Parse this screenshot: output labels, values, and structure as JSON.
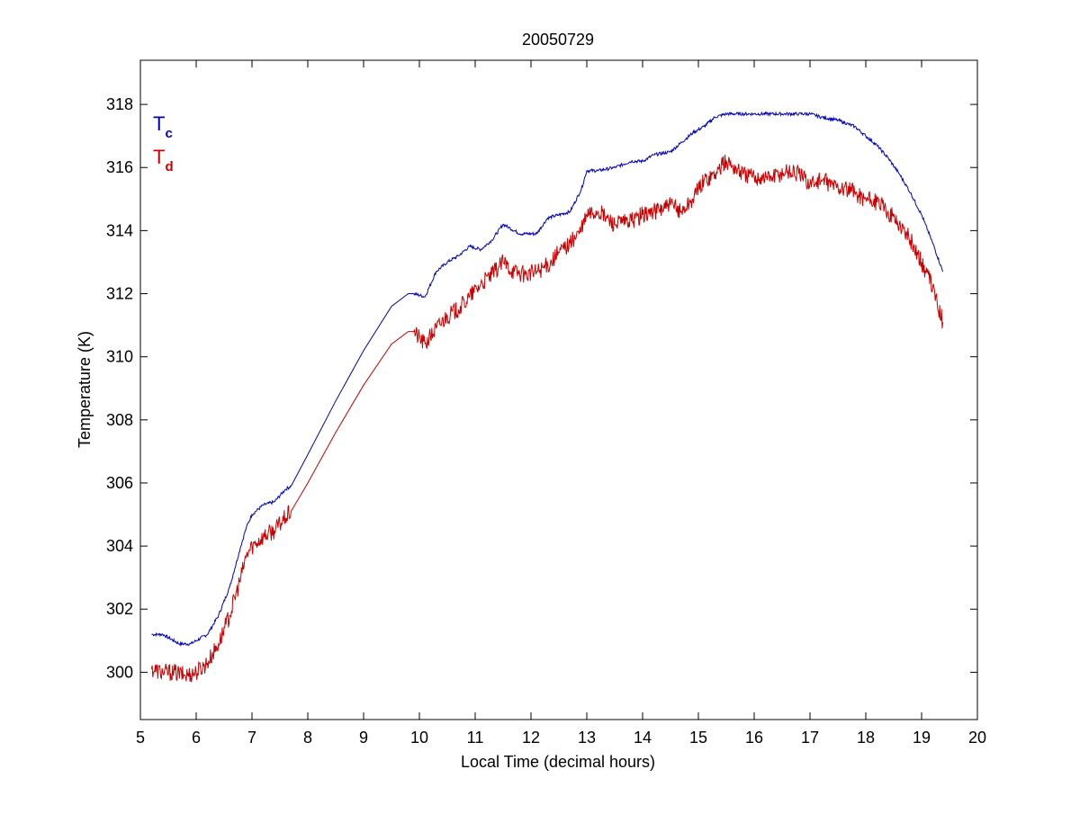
{
  "chart_data": {
    "type": "line",
    "title": "20050729",
    "xlabel": "Local Time (decimal hours)",
    "ylabel": "Temperature (K)",
    "xlim": [
      5,
      20
    ],
    "ylim": [
      298.5,
      319.4
    ],
    "xticks": [
      5,
      6,
      7,
      8,
      9,
      10,
      11,
      12,
      13,
      14,
      15,
      16,
      17,
      18,
      19,
      20
    ],
    "yticks": [
      300,
      302,
      304,
      306,
      308,
      310,
      312,
      314,
      316,
      318
    ],
    "grid": false,
    "legend_position": "top-left",
    "series": [
      {
        "name": "T",
        "subscript": "c",
        "color": "#0000bf",
        "noise": 0.05,
        "x": [
          5.2,
          5.4,
          5.5,
          5.7,
          5.9,
          6.0,
          6.2,
          6.4,
          6.6,
          6.8,
          6.9,
          7.0,
          7.2,
          7.4,
          7.6,
          7.7,
          8.0,
          8.5,
          9.0,
          9.5,
          9.8,
          9.9,
          10.1,
          10.3,
          10.5,
          10.7,
          10.9,
          11.1,
          11.3,
          11.5,
          11.6,
          11.8,
          12.1,
          12.3,
          12.5,
          12.7,
          12.9,
          13.0,
          13.2,
          13.5,
          13.8,
          14.0,
          14.2,
          14.5,
          14.7,
          14.9,
          15.1,
          15.3,
          15.5,
          15.8,
          16.0,
          16.3,
          16.6,
          16.8,
          17.0,
          17.2,
          17.5,
          17.8,
          18.0,
          18.2,
          18.4,
          18.6,
          18.8,
          19.0,
          19.2,
          19.38
        ],
        "y": [
          301.2,
          301.2,
          301.1,
          300.9,
          300.9,
          301.0,
          301.2,
          301.8,
          302.7,
          304.0,
          304.6,
          305.0,
          305.3,
          305.4,
          305.8,
          305.9,
          306.9,
          308.6,
          310.2,
          311.6,
          312.0,
          312.0,
          311.9,
          312.7,
          313.0,
          313.2,
          313.5,
          313.4,
          313.7,
          314.2,
          314.1,
          313.9,
          313.9,
          314.4,
          314.5,
          314.6,
          315.3,
          315.9,
          315.9,
          316.0,
          316.2,
          316.2,
          316.4,
          316.5,
          316.8,
          317.1,
          317.3,
          317.6,
          317.7,
          317.7,
          317.7,
          317.7,
          317.7,
          317.7,
          317.7,
          317.6,
          317.5,
          317.3,
          317.0,
          316.7,
          316.3,
          315.8,
          315.2,
          314.5,
          313.6,
          312.7
        ]
      },
      {
        "name": "T",
        "subscript": "d",
        "color": "#cc0000",
        "noise": 0.28,
        "x": [
          5.2,
          5.4,
          5.6,
          5.8,
          6.0,
          6.2,
          6.4,
          6.6,
          6.8,
          6.9,
          7.0,
          7.2,
          7.4,
          7.6,
          7.7,
          8.0,
          8.5,
          9.0,
          9.5,
          9.8,
          9.9,
          10.1,
          10.3,
          10.5,
          10.7,
          10.9,
          11.1,
          11.3,
          11.5,
          11.7,
          11.9,
          12.1,
          12.3,
          12.5,
          12.7,
          12.9,
          13.0,
          13.2,
          13.5,
          13.8,
          14.0,
          14.2,
          14.5,
          14.7,
          14.9,
          15.1,
          15.3,
          15.5,
          15.8,
          16.0,
          16.3,
          16.6,
          16.8,
          17.0,
          17.2,
          17.5,
          17.8,
          18.0,
          18.2,
          18.4,
          18.6,
          18.8,
          19.0,
          19.2,
          19.38
        ],
        "y": [
          300.1,
          300.0,
          300.0,
          299.9,
          300.0,
          300.3,
          300.9,
          301.8,
          303.0,
          303.7,
          304.0,
          304.3,
          304.5,
          304.9,
          305.1,
          306.0,
          307.6,
          309.1,
          310.4,
          310.8,
          310.8,
          310.4,
          310.9,
          311.3,
          311.5,
          311.9,
          312.3,
          312.6,
          313.0,
          312.7,
          312.6,
          312.7,
          312.9,
          313.3,
          313.6,
          314.0,
          314.5,
          314.6,
          314.2,
          314.3,
          314.5,
          314.6,
          314.8,
          314.6,
          315.0,
          315.6,
          315.8,
          316.2,
          315.8,
          315.7,
          315.7,
          315.9,
          315.8,
          315.5,
          315.6,
          315.4,
          315.2,
          315.0,
          314.9,
          314.6,
          314.2,
          313.7,
          313.0,
          312.2,
          311.1
        ]
      }
    ]
  }
}
